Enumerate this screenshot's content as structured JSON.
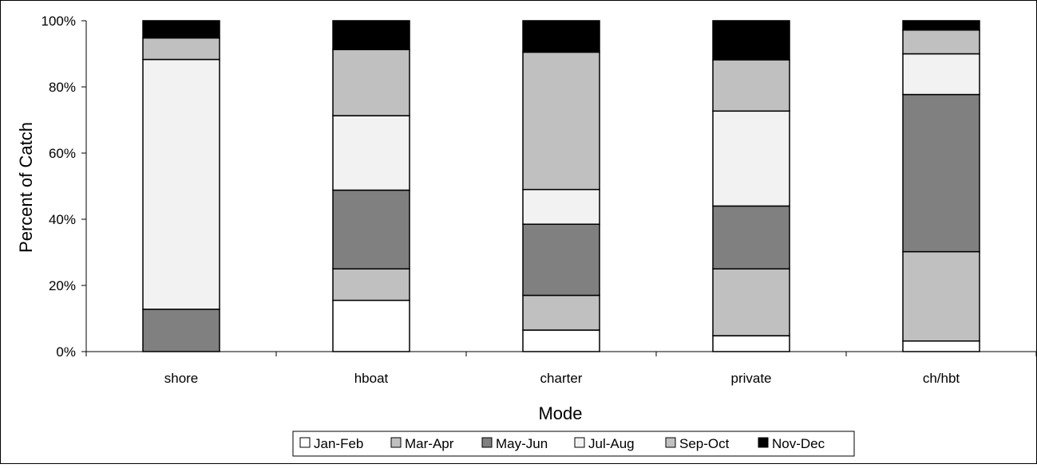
{
  "chart_data": {
    "type": "bar",
    "stacked": true,
    "percent_stacked": true,
    "categories": [
      "shore",
      "hboat",
      "charter",
      "private",
      "ch/hbt"
    ],
    "series": [
      {
        "name": "Jan-Feb",
        "color": "#ffffff",
        "values": [
          0.0,
          15.5,
          6.5,
          4.8,
          3.2
        ]
      },
      {
        "name": "Mar-Apr",
        "color": "#c0c0c0",
        "values": [
          0.0,
          9.5,
          10.5,
          20.2,
          27.0
        ]
      },
      {
        "name": "May-Jun",
        "color": "#808080",
        "values": [
          12.8,
          23.8,
          21.5,
          19.0,
          47.5
        ]
      },
      {
        "name": "Jul-Aug",
        "color": "#f2f2f2",
        "values": [
          75.5,
          22.5,
          10.5,
          28.7,
          12.3
        ]
      },
      {
        "name": "Sep-Oct",
        "color": "#c0c0c0",
        "values": [
          6.5,
          20.0,
          41.5,
          15.5,
          7.2
        ]
      },
      {
        "name": "Nov-Dec",
        "color": "#000000",
        "values": [
          5.2,
          8.7,
          9.5,
          11.8,
          2.8
        ]
      }
    ],
    "xlabel": "Mode",
    "ylabel": "Percent of Catch",
    "ylim": [
      0,
      100
    ],
    "yticks": [
      "0%",
      "20%",
      "40%",
      "60%",
      "80%",
      "100%"
    ],
    "grid": false,
    "legend_position": "bottom"
  }
}
